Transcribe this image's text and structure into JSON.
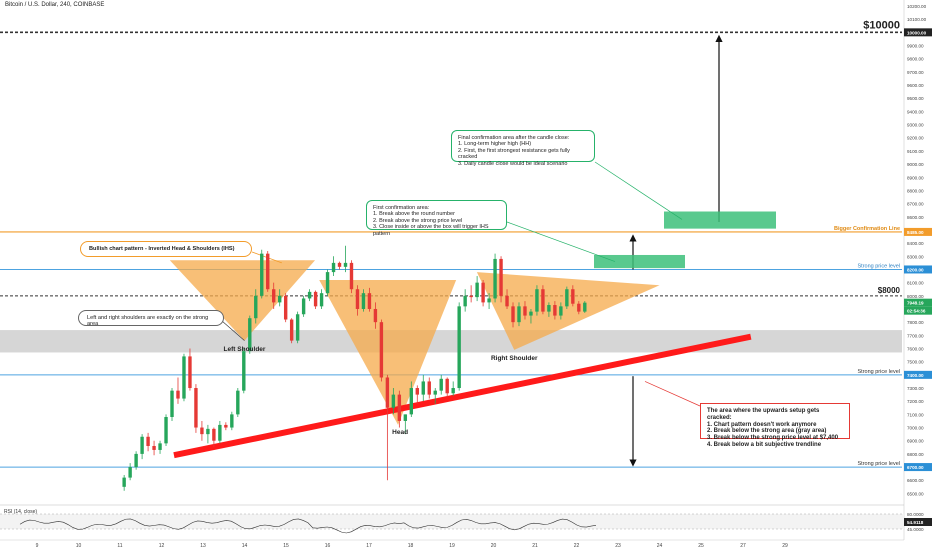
{
  "header": {
    "title": "Bitcoin / U.S. Dollar, 240, COINBASE"
  },
  "chart_data": {
    "type": "candlestick",
    "price_axis": {
      "ylim": [
        6450,
        10200
      ],
      "tick_start": 6500,
      "tick_step": 100,
      "tick_end": 10200,
      "grid": false,
      "position": "right"
    },
    "time_axis": {
      "ticks": [
        "9",
        "10",
        "11",
        "12",
        "13",
        "14",
        "15",
        "16",
        "17",
        "18",
        "19",
        "20",
        "21",
        "22",
        "23",
        "24",
        "25",
        "27",
        "29"
      ],
      "last_candle_day": 22.2
    },
    "price_badges": {
      "bigger_line": "8485.00",
      "strong_upper": "8200.00",
      "current_price": "7948.19",
      "countdown": "02:54:36",
      "strong_mid": "7400.00",
      "strong_low": "6700.00"
    },
    "candles": [
      {
        "o": 6550,
        "h": 6640,
        "l": 6520,
        "c": 6620
      },
      {
        "o": 6620,
        "h": 6730,
        "l": 6600,
        "c": 6700
      },
      {
        "o": 6700,
        "h": 6820,
        "l": 6680,
        "c": 6800
      },
      {
        "o": 6800,
        "h": 6950,
        "l": 6760,
        "c": 6930
      },
      {
        "o": 6930,
        "h": 6960,
        "l": 6820,
        "c": 6860
      },
      {
        "o": 6860,
        "h": 6900,
        "l": 6790,
        "c": 6830
      },
      {
        "o": 6830,
        "h": 6900,
        "l": 6800,
        "c": 6880
      },
      {
        "o": 6880,
        "h": 7100,
        "l": 6860,
        "c": 7080
      },
      {
        "o": 7080,
        "h": 7300,
        "l": 7050,
        "c": 7280
      },
      {
        "o": 7280,
        "h": 7380,
        "l": 7180,
        "c": 7220
      },
      {
        "o": 7220,
        "h": 7560,
        "l": 7200,
        "c": 7540
      },
      {
        "o": 7540,
        "h": 7600,
        "l": 7280,
        "c": 7300
      },
      {
        "o": 7300,
        "h": 7330,
        "l": 6960,
        "c": 7000
      },
      {
        "o": 7000,
        "h": 7050,
        "l": 6900,
        "c": 6950
      },
      {
        "o": 6950,
        "h": 7020,
        "l": 6880,
        "c": 6990
      },
      {
        "o": 6990,
        "h": 7000,
        "l": 6850,
        "c": 6900
      },
      {
        "o": 6900,
        "h": 7050,
        "l": 6880,
        "c": 7020
      },
      {
        "o": 7020,
        "h": 7040,
        "l": 6980,
        "c": 7000
      },
      {
        "o": 7000,
        "h": 7120,
        "l": 6980,
        "c": 7100
      },
      {
        "o": 7100,
        "h": 7300,
        "l": 7080,
        "c": 7280
      },
      {
        "o": 7280,
        "h": 7600,
        "l": 7260,
        "c": 7580
      },
      {
        "o": 7580,
        "h": 7850,
        "l": 7560,
        "c": 7830
      },
      {
        "o": 7830,
        "h": 8050,
        "l": 7790,
        "c": 8000
      },
      {
        "o": 8000,
        "h": 8350,
        "l": 7980,
        "c": 8320
      },
      {
        "o": 8320,
        "h": 8340,
        "l": 8030,
        "c": 8050
      },
      {
        "o": 8050,
        "h": 8100,
        "l": 7900,
        "c": 7950
      },
      {
        "o": 7950,
        "h": 8050,
        "l": 7920,
        "c": 8000
      },
      {
        "o": 8000,
        "h": 8020,
        "l": 7800,
        "c": 7820
      },
      {
        "o": 7820,
        "h": 7830,
        "l": 7640,
        "c": 7660
      },
      {
        "o": 7660,
        "h": 7880,
        "l": 7640,
        "c": 7860
      },
      {
        "o": 7860,
        "h": 8000,
        "l": 7840,
        "c": 7980
      },
      {
        "o": 7980,
        "h": 8050,
        "l": 7960,
        "c": 8030
      },
      {
        "o": 8030,
        "h": 8040,
        "l": 7900,
        "c": 7920
      },
      {
        "o": 7920,
        "h": 8050,
        "l": 7900,
        "c": 8020
      },
      {
        "o": 8020,
        "h": 8200,
        "l": 8000,
        "c": 8180
      },
      {
        "o": 8180,
        "h": 8300,
        "l": 8150,
        "c": 8250
      },
      {
        "o": 8250,
        "h": 8260,
        "l": 8200,
        "c": 8220
      },
      {
        "o": 8220,
        "h": 8380,
        "l": 8180,
        "c": 8250
      },
      {
        "o": 8250,
        "h": 8270,
        "l": 8020,
        "c": 8050
      },
      {
        "o": 8050,
        "h": 8080,
        "l": 7850,
        "c": 7900
      },
      {
        "o": 7900,
        "h": 8050,
        "l": 7880,
        "c": 8020
      },
      {
        "o": 8020,
        "h": 8060,
        "l": 7880,
        "c": 7900
      },
      {
        "o": 7900,
        "h": 7950,
        "l": 7750,
        "c": 7800
      },
      {
        "o": 7800,
        "h": 7820,
        "l": 7350,
        "c": 7380
      },
      {
        "o": 7380,
        "h": 7400,
        "l": 6600,
        "c": 7150
      },
      {
        "o": 7150,
        "h": 7300,
        "l": 7100,
        "c": 7250
      },
      {
        "o": 7250,
        "h": 7280,
        "l": 7000,
        "c": 7050
      },
      {
        "o": 7050,
        "h": 7100,
        "l": 6950,
        "c": 7100
      },
      {
        "o": 7100,
        "h": 7350,
        "l": 7080,
        "c": 7300
      },
      {
        "o": 7300,
        "h": 7320,
        "l": 7180,
        "c": 7250
      },
      {
        "o": 7250,
        "h": 7400,
        "l": 7200,
        "c": 7350
      },
      {
        "o": 7350,
        "h": 7380,
        "l": 7220,
        "c": 7250
      },
      {
        "o": 7250,
        "h": 7300,
        "l": 7180,
        "c": 7280
      },
      {
        "o": 7280,
        "h": 7400,
        "l": 7250,
        "c": 7370
      },
      {
        "o": 7370,
        "h": 7380,
        "l": 7230,
        "c": 7260
      },
      {
        "o": 7260,
        "h": 7350,
        "l": 7240,
        "c": 7300
      },
      {
        "o": 7300,
        "h": 7950,
        "l": 7280,
        "c": 7920
      },
      {
        "o": 7920,
        "h": 8050,
        "l": 7880,
        "c": 8000
      },
      {
        "o": 8000,
        "h": 8080,
        "l": 7950,
        "c": 7990
      },
      {
        "o": 7990,
        "h": 8150,
        "l": 7960,
        "c": 8100
      },
      {
        "o": 8100,
        "h": 8120,
        "l": 7920,
        "c": 7950
      },
      {
        "o": 7950,
        "h": 8020,
        "l": 7900,
        "c": 7980
      },
      {
        "o": 7980,
        "h": 8320,
        "l": 7950,
        "c": 8280
      },
      {
        "o": 8280,
        "h": 8300,
        "l": 7950,
        "c": 8000
      },
      {
        "o": 8000,
        "h": 8050,
        "l": 7900,
        "c": 7920
      },
      {
        "o": 7920,
        "h": 7950,
        "l": 7760,
        "c": 7800
      },
      {
        "o": 7800,
        "h": 7950,
        "l": 7770,
        "c": 7920
      },
      {
        "o": 7920,
        "h": 7960,
        "l": 7820,
        "c": 7850
      },
      {
        "o": 7850,
        "h": 7900,
        "l": 7790,
        "c": 7880
      },
      {
        "o": 7880,
        "h": 8080,
        "l": 7850,
        "c": 8050
      },
      {
        "o": 8050,
        "h": 8080,
        "l": 7860,
        "c": 7880
      },
      {
        "o": 7880,
        "h": 7950,
        "l": 7840,
        "c": 7930
      },
      {
        "o": 7930,
        "h": 7960,
        "l": 7820,
        "c": 7850
      },
      {
        "o": 7850,
        "h": 7950,
        "l": 7820,
        "c": 7920
      },
      {
        "o": 7920,
        "h": 8070,
        "l": 7900,
        "c": 8050
      },
      {
        "o": 8050,
        "h": 8080,
        "l": 7920,
        "c": 7940
      },
      {
        "o": 7940,
        "h": 7960,
        "l": 7860,
        "c": 7880
      },
      {
        "o": 7880,
        "h": 7960,
        "l": 7870,
        "c": 7948
      }
    ],
    "levels": [
      {
        "price": 10000,
        "name": "$10000",
        "color": "#333333"
      },
      {
        "price": 8485,
        "name": "Bigger Confirmation Line",
        "color": "#f29c2b"
      },
      {
        "price": 8200,
        "name": "Strong price level",
        "color": "#4da3e0"
      },
      {
        "price": 8000,
        "name": "$8000",
        "color": "#333333"
      },
      {
        "price": 7400,
        "name": "Strong price level",
        "color": "#4da3e0"
      },
      {
        "price": 6700,
        "name": "Strong price level",
        "color": "#4da3e0"
      }
    ],
    "zones": [
      {
        "name": "gray-area",
        "from_price": 7570,
        "to_price": 7740,
        "color": "#cfcfcf"
      }
    ],
    "pattern_labels": [
      "Left Shoulder",
      "Head",
      "Right Shoulder"
    ],
    "rsi": {
      "label": "RSI (14, close)",
      "levels": [
        "80.0000",
        "54.9118",
        "45.0000"
      ],
      "value": 54.9118
    },
    "annotations": {
      "final_confirmation": "Final confirmation area after the candle close:\n1. Long-term higher high (HH)\n2. First, the first strongest resistance gets fully cracked\n3. Daily candle close would be ideal scenario",
      "first_confirmation": "First confirmation area:\n1. Break above the round number\n2. Break above the strong price level\n3. Close inside or above the box will trigger IHS pattern",
      "pattern": "Bullish chart pattern - Inverted Head & Shoulders (IHS)",
      "shoulders": "Left and right shoulders are exactly on the strong area",
      "cracked": "The area where the upwards setup gets cracked:\n1. Chart pattern doesn't work anymore\n2. Break below the strong area (gray area)\n3. Break below the strong price level at $7,400\n4. Break below a bit subjective trendline"
    },
    "colors": {
      "up": "#26a65b",
      "down": "#e53935",
      "trendline": "#ff1a1a",
      "triangle": "#f5a94a",
      "confirm_box": "#3cbf7a"
    }
  }
}
